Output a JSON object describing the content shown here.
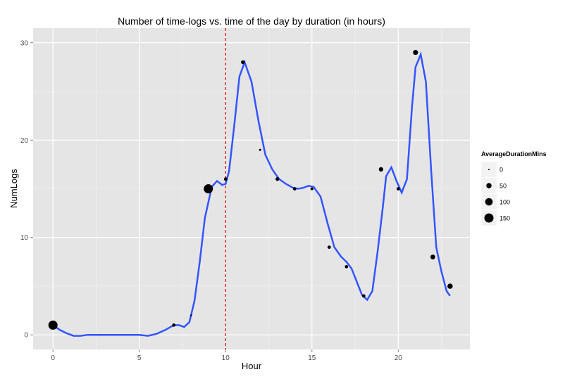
{
  "chart_data": {
    "type": "scatter",
    "title": "Number of time-logs vs. time of the day by duration (in hours)",
    "xlabel": "Hour",
    "ylabel": "NumLogs",
    "xlim": [
      -1.15,
      24.15
    ],
    "ylim": [
      -1.5,
      31.5
    ],
    "x_ticks": [
      0,
      5,
      10,
      15,
      20
    ],
    "y_ticks": [
      0,
      10,
      20,
      30
    ],
    "grid": true,
    "legend_position": "right",
    "size_legend": {
      "title": "AverageDurationMins",
      "entries": [
        {
          "label": "0",
          "value": 0
        },
        {
          "label": "50",
          "value": 50
        },
        {
          "label": "100",
          "value": 100
        },
        {
          "label": "150",
          "value": 150
        }
      ]
    },
    "reference_line": {
      "x": 10,
      "style": "dashed",
      "color": "#dd0000"
    },
    "points": [
      {
        "hour": 0,
        "numlogs": 1,
        "avg_duration": 150
      },
      {
        "hour": 7,
        "numlogs": 1,
        "avg_duration": 20
      },
      {
        "hour": 8,
        "numlogs": 2,
        "avg_duration": 5
      },
      {
        "hour": 9,
        "numlogs": 15,
        "avg_duration": 150
      },
      {
        "hour": 10,
        "numlogs": 16,
        "avg_duration": 20
      },
      {
        "hour": 11,
        "numlogs": 28,
        "avg_duration": 25
      },
      {
        "hour": 12,
        "numlogs": 19,
        "avg_duration": 8
      },
      {
        "hour": 13,
        "numlogs": 16,
        "avg_duration": 25
      },
      {
        "hour": 14,
        "numlogs": 15,
        "avg_duration": 20
      },
      {
        "hour": 15,
        "numlogs": 15,
        "avg_duration": 15
      },
      {
        "hour": 16,
        "numlogs": 9,
        "avg_duration": 20
      },
      {
        "hour": 17,
        "numlogs": 7,
        "avg_duration": 20
      },
      {
        "hour": 18,
        "numlogs": 4,
        "avg_duration": 20
      },
      {
        "hour": 19,
        "numlogs": 17,
        "avg_duration": 35
      },
      {
        "hour": 20,
        "numlogs": 15,
        "avg_duration": 20
      },
      {
        "hour": 21,
        "numlogs": 29,
        "avg_duration": 45
      },
      {
        "hour": 22,
        "numlogs": 8,
        "avg_duration": 40
      },
      {
        "hour": 23,
        "numlogs": 5,
        "avg_duration": 50
      }
    ],
    "smooth_line": {
      "color": "#3355ff",
      "x": [
        0,
        0.4,
        0.8,
        1.2,
        1.6,
        2,
        3,
        4,
        5,
        5.5,
        6,
        6.5,
        7,
        7.3,
        7.6,
        7.9,
        8.2,
        8.5,
        8.8,
        9.2,
        9.5,
        9.8,
        10,
        10.2,
        10.5,
        10.8,
        11.1,
        11.5,
        11.9,
        12.3,
        12.7,
        13.1,
        13.5,
        13.9,
        14.2,
        14.5,
        14.8,
        15.1,
        15.5,
        15.9,
        16.3,
        16.7,
        17.0,
        17.3,
        17.7,
        17.9,
        18.2,
        18.5,
        18.8,
        19.1,
        19.3,
        19.6,
        19.9,
        20.2,
        20.5,
        20.8,
        21.0,
        21.3,
        21.6,
        21.9,
        22.2,
        22.5,
        22.8,
        23.0
      ],
      "y": [
        1,
        0.5,
        0.15,
        -0.1,
        -0.1,
        0,
        0,
        0,
        0,
        -0.1,
        0.1,
        0.5,
        1,
        1,
        0.8,
        1.3,
        3.5,
        7.5,
        12,
        15.2,
        15.8,
        15.4,
        15.5,
        16.8,
        21.5,
        26.5,
        28,
        26,
        22,
        18.5,
        17,
        16,
        15.5,
        15.1,
        15.0,
        15.1,
        15.3,
        15.2,
        14.2,
        11.5,
        9,
        8,
        7.5,
        6.8,
        5,
        4.1,
        3.6,
        4.5,
        8.5,
        13,
        16.3,
        17.2,
        15.8,
        14.6,
        16,
        23.5,
        27.5,
        28.8,
        26,
        17,
        9,
        6.5,
        4.5,
        4.0
      ]
    }
  }
}
